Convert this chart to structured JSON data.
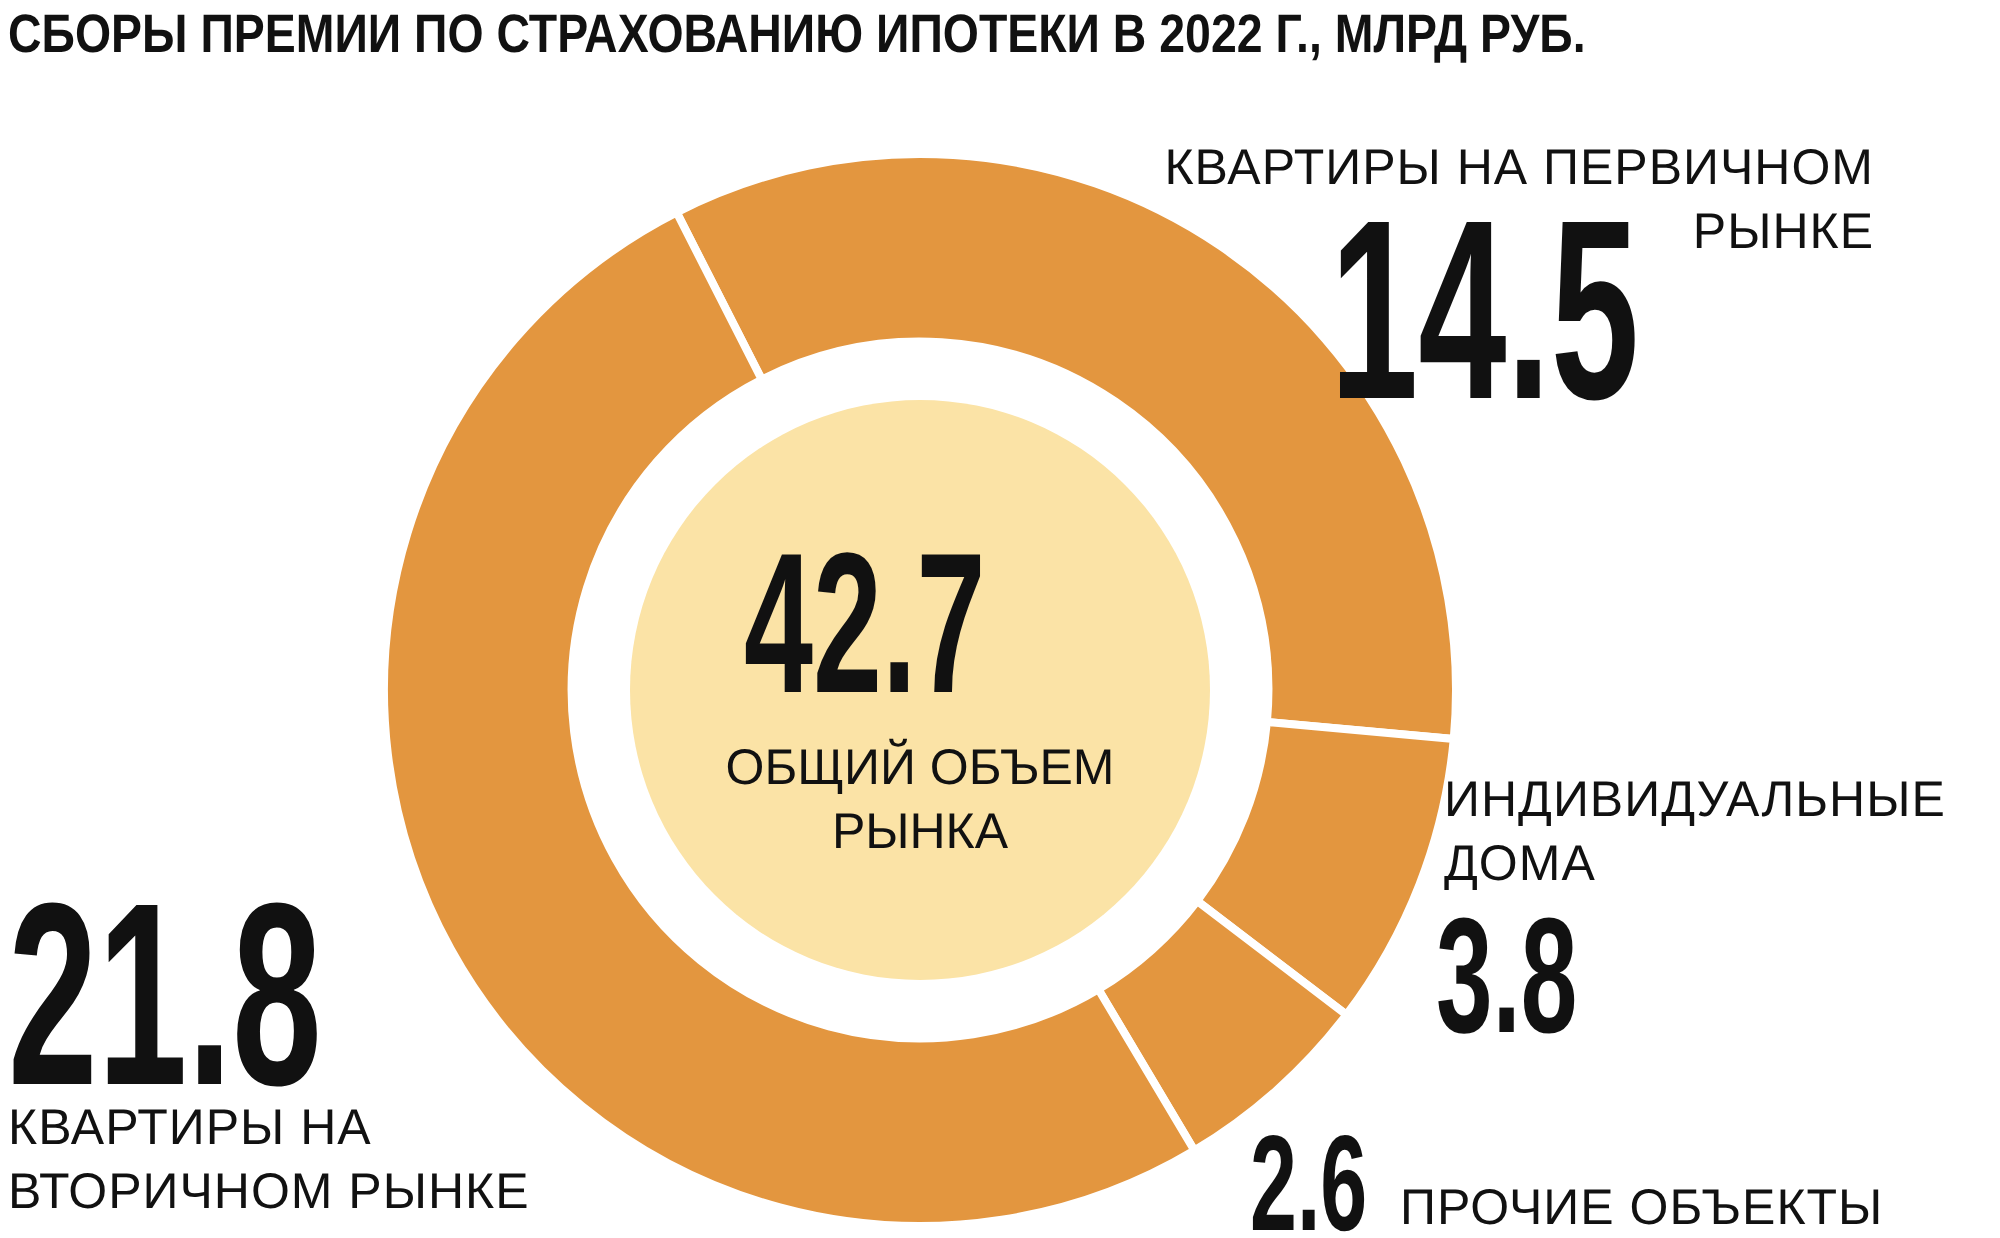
{
  "chart_data": {
    "type": "donut",
    "title": "СБОРЫ ПРЕМИИ ПО СТРАХОВАНИЮ ИПОТЕКИ В 2022 Г., МЛРД РУБ.",
    "categories": [
      "КВАРТИРЫ НА ПЕРВИЧНОМ РЫНКЕ",
      "ИНДИВИДУАЛЬНЫЕ ДОМА",
      "ПРОЧИЕ ОБЪЕКТЫ",
      "КВАРТИРЫ НА ВТОРИЧНОМ РЫНКЕ"
    ],
    "values": [
      14.5,
      3.8,
      2.6,
      21.8
    ],
    "colors": [
      "#e3963f",
      "#e3963f",
      "#e3963f",
      "#e3963f"
    ],
    "data_labels": true,
    "legend": false,
    "annotations": [
      "42.7",
      "ОБЩИЙ ОБЪЕМ РЫНКА"
    ]
  }
}
